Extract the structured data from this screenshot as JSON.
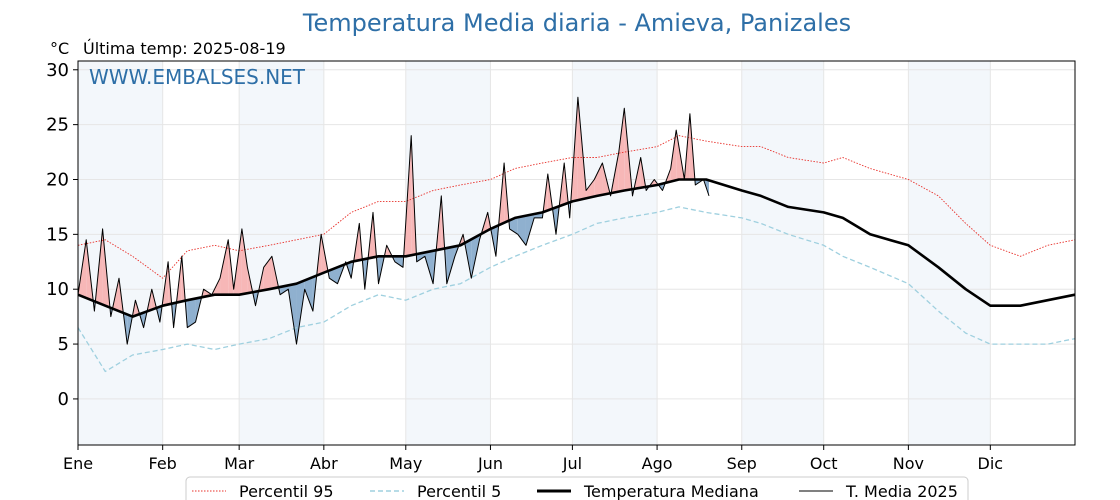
{
  "colors": {
    "title": "#2e6fa7",
    "p95": "#e8302a",
    "p5": "#9fd0df",
    "median": "#000000",
    "current": "#000000",
    "above_fill": "#f7b7b7",
    "above_fill_dark": "#e05a5a",
    "below_fill": "#8fb0cf",
    "below_fill_dark": "#4f7fa8",
    "month_band": "#f3f7fb",
    "grid": "#e6e6e6"
  },
  "chart_data": {
    "type": "line",
    "title": "Temperatura Media diaria - Amieva, Panizales",
    "unit_label": "°C",
    "last_temp_label": "Última temp: 2025-08-19",
    "watermark": "WWW.EMBALSES.NET",
    "ylim": [
      -4.2,
      30.8
    ],
    "y_ticks": [
      0,
      5,
      10,
      15,
      20,
      25,
      30
    ],
    "xlim": [
      0,
      365
    ],
    "months": [
      {
        "label": "Ene",
        "day": 0
      },
      {
        "label": "Feb",
        "day": 31
      },
      {
        "label": "Mar",
        "day": 59
      },
      {
        "label": "Abr",
        "day": 90
      },
      {
        "label": "May",
        "day": 120
      },
      {
        "label": "Jun",
        "day": 151
      },
      {
        "label": "Jul",
        "day": 181
      },
      {
        "label": "Ago",
        "day": 212
      },
      {
        "label": "Sep",
        "day": 243
      },
      {
        "label": "Oct",
        "day": 273
      },
      {
        "label": "Nov",
        "day": 304
      },
      {
        "label": "Dic",
        "day": 334
      }
    ],
    "grid": true,
    "legend_position": "bottom-center",
    "legend": [
      {
        "key": "p95",
        "label": "Percentil 95",
        "style": "dotted-red"
      },
      {
        "key": "p5",
        "label": "Percentil 5",
        "style": "dashed-lightblue"
      },
      {
        "key": "median",
        "label": "Temperatura Mediana",
        "style": "thick-black"
      },
      {
        "key": "current",
        "label": "T. Media 2025",
        "style": "thin-black"
      }
    ],
    "series": [
      {
        "name": "Percentil 95",
        "key": "p95",
        "points": [
          [
            0,
            14
          ],
          [
            10,
            14.5
          ],
          [
            20,
            13
          ],
          [
            31,
            11
          ],
          [
            40,
            13.5
          ],
          [
            50,
            14
          ],
          [
            59,
            13.5
          ],
          [
            70,
            14
          ],
          [
            80,
            14.5
          ],
          [
            90,
            15
          ],
          [
            100,
            17
          ],
          [
            110,
            18
          ],
          [
            120,
            18
          ],
          [
            130,
            19
          ],
          [
            140,
            19.5
          ],
          [
            151,
            20
          ],
          [
            160,
            21
          ],
          [
            170,
            21.5
          ],
          [
            181,
            22
          ],
          [
            190,
            22
          ],
          [
            200,
            22.5
          ],
          [
            212,
            23
          ],
          [
            220,
            24
          ],
          [
            230,
            23.5
          ],
          [
            243,
            23
          ],
          [
            250,
            23
          ],
          [
            260,
            22
          ],
          [
            273,
            21.5
          ],
          [
            280,
            22
          ],
          [
            290,
            21
          ],
          [
            304,
            20
          ],
          [
            315,
            18.5
          ],
          [
            325,
            16
          ],
          [
            334,
            14
          ],
          [
            345,
            13
          ],
          [
            355,
            14
          ],
          [
            365,
            14.5
          ]
        ]
      },
      {
        "name": "Percentil 5",
        "key": "p5",
        "points": [
          [
            0,
            6.5
          ],
          [
            10,
            2.5
          ],
          [
            20,
            4
          ],
          [
            31,
            4.5
          ],
          [
            40,
            5
          ],
          [
            50,
            4.5
          ],
          [
            59,
            5
          ],
          [
            70,
            5.5
          ],
          [
            80,
            6.5
          ],
          [
            90,
            7
          ],
          [
            100,
            8.5
          ],
          [
            110,
            9.5
          ],
          [
            120,
            9
          ],
          [
            130,
            10
          ],
          [
            140,
            10.5
          ],
          [
            151,
            12
          ],
          [
            160,
            13
          ],
          [
            170,
            14
          ],
          [
            181,
            15
          ],
          [
            190,
            16
          ],
          [
            200,
            16.5
          ],
          [
            212,
            17
          ],
          [
            220,
            17.5
          ],
          [
            230,
            17
          ],
          [
            243,
            16.5
          ],
          [
            250,
            16
          ],
          [
            260,
            15
          ],
          [
            273,
            14
          ],
          [
            280,
            13
          ],
          [
            290,
            12
          ],
          [
            304,
            10.5
          ],
          [
            315,
            8
          ],
          [
            325,
            6
          ],
          [
            334,
            5
          ],
          [
            345,
            5
          ],
          [
            355,
            5
          ],
          [
            365,
            5.5
          ]
        ]
      },
      {
        "name": "Temperatura Mediana",
        "key": "median",
        "points": [
          [
            0,
            9.5
          ],
          [
            10,
            8.5
          ],
          [
            20,
            7.5
          ],
          [
            31,
            8.5
          ],
          [
            40,
            9
          ],
          [
            50,
            9.5
          ],
          [
            59,
            9.5
          ],
          [
            70,
            10
          ],
          [
            80,
            10.5
          ],
          [
            90,
            11.5
          ],
          [
            100,
            12.5
          ],
          [
            110,
            13
          ],
          [
            120,
            13
          ],
          [
            130,
            13.5
          ],
          [
            140,
            14
          ],
          [
            151,
            15.5
          ],
          [
            160,
            16.5
          ],
          [
            170,
            17
          ],
          [
            181,
            18
          ],
          [
            190,
            18.5
          ],
          [
            200,
            19
          ],
          [
            212,
            19.5
          ],
          [
            220,
            20
          ],
          [
            230,
            20
          ],
          [
            243,
            19
          ],
          [
            250,
            18.5
          ],
          [
            260,
            17.5
          ],
          [
            273,
            17
          ],
          [
            280,
            16.5
          ],
          [
            290,
            15
          ],
          [
            304,
            14
          ],
          [
            315,
            12
          ],
          [
            325,
            10
          ],
          [
            334,
            8.5
          ],
          [
            345,
            8.5
          ],
          [
            355,
            9
          ],
          [
            365,
            9.5
          ]
        ]
      },
      {
        "name": "T. Media 2025",
        "key": "current",
        "points": [
          [
            0,
            9.5
          ],
          [
            3,
            14.5
          ],
          [
            6,
            8
          ],
          [
            9,
            15.5
          ],
          [
            12,
            7.5
          ],
          [
            15,
            11
          ],
          [
            18,
            5
          ],
          [
            21,
            9
          ],
          [
            24,
            6.5
          ],
          [
            27,
            10
          ],
          [
            30,
            7
          ],
          [
            33,
            12.5
          ],
          [
            35,
            6.5
          ],
          [
            38,
            13
          ],
          [
            40,
            6.5
          ],
          [
            43,
            7
          ],
          [
            46,
            10
          ],
          [
            49,
            9.5
          ],
          [
            52,
            11
          ],
          [
            55,
            14.5
          ],
          [
            57,
            10
          ],
          [
            60,
            15.5
          ],
          [
            62,
            12
          ],
          [
            65,
            8.5
          ],
          [
            68,
            12
          ],
          [
            71,
            13
          ],
          [
            74,
            9.5
          ],
          [
            77,
            10
          ],
          [
            80,
            5
          ],
          [
            83,
            10
          ],
          [
            86,
            8
          ],
          [
            89,
            15
          ],
          [
            92,
            11
          ],
          [
            95,
            10.5
          ],
          [
            98,
            12.5
          ],
          [
            100,
            11
          ],
          [
            103,
            16
          ],
          [
            105,
            10
          ],
          [
            108,
            17
          ],
          [
            110,
            10.5
          ],
          [
            113,
            14
          ],
          [
            116,
            12.5
          ],
          [
            119,
            12
          ],
          [
            122,
            24
          ],
          [
            124,
            12.5
          ],
          [
            127,
            13
          ],
          [
            130,
            10.5
          ],
          [
            133,
            18.5
          ],
          [
            135,
            10.5
          ],
          [
            138,
            13
          ],
          [
            141,
            15
          ],
          [
            144,
            11
          ],
          [
            147,
            14.5
          ],
          [
            150,
            17
          ],
          [
            153,
            13
          ],
          [
            156,
            21.5
          ],
          [
            158,
            15.5
          ],
          [
            161,
            15
          ],
          [
            164,
            14
          ],
          [
            167,
            16.5
          ],
          [
            170,
            16.5
          ],
          [
            172,
            20.5
          ],
          [
            175,
            15
          ],
          [
            178,
            21.5
          ],
          [
            180,
            16.5
          ],
          [
            183,
            27.5
          ],
          [
            186,
            19
          ],
          [
            189,
            20
          ],
          [
            192,
            21.5
          ],
          [
            195,
            18.5
          ],
          [
            198,
            22.5
          ],
          [
            200,
            26.5
          ],
          [
            203,
            18.5
          ],
          [
            206,
            22
          ],
          [
            208,
            19
          ],
          [
            211,
            20
          ],
          [
            214,
            19
          ],
          [
            217,
            21
          ],
          [
            219,
            24.5
          ],
          [
            222,
            20
          ],
          [
            224,
            26
          ],
          [
            226,
            19.5
          ],
          [
            229,
            20
          ],
          [
            231,
            18.5
          ]
        ]
      }
    ]
  }
}
